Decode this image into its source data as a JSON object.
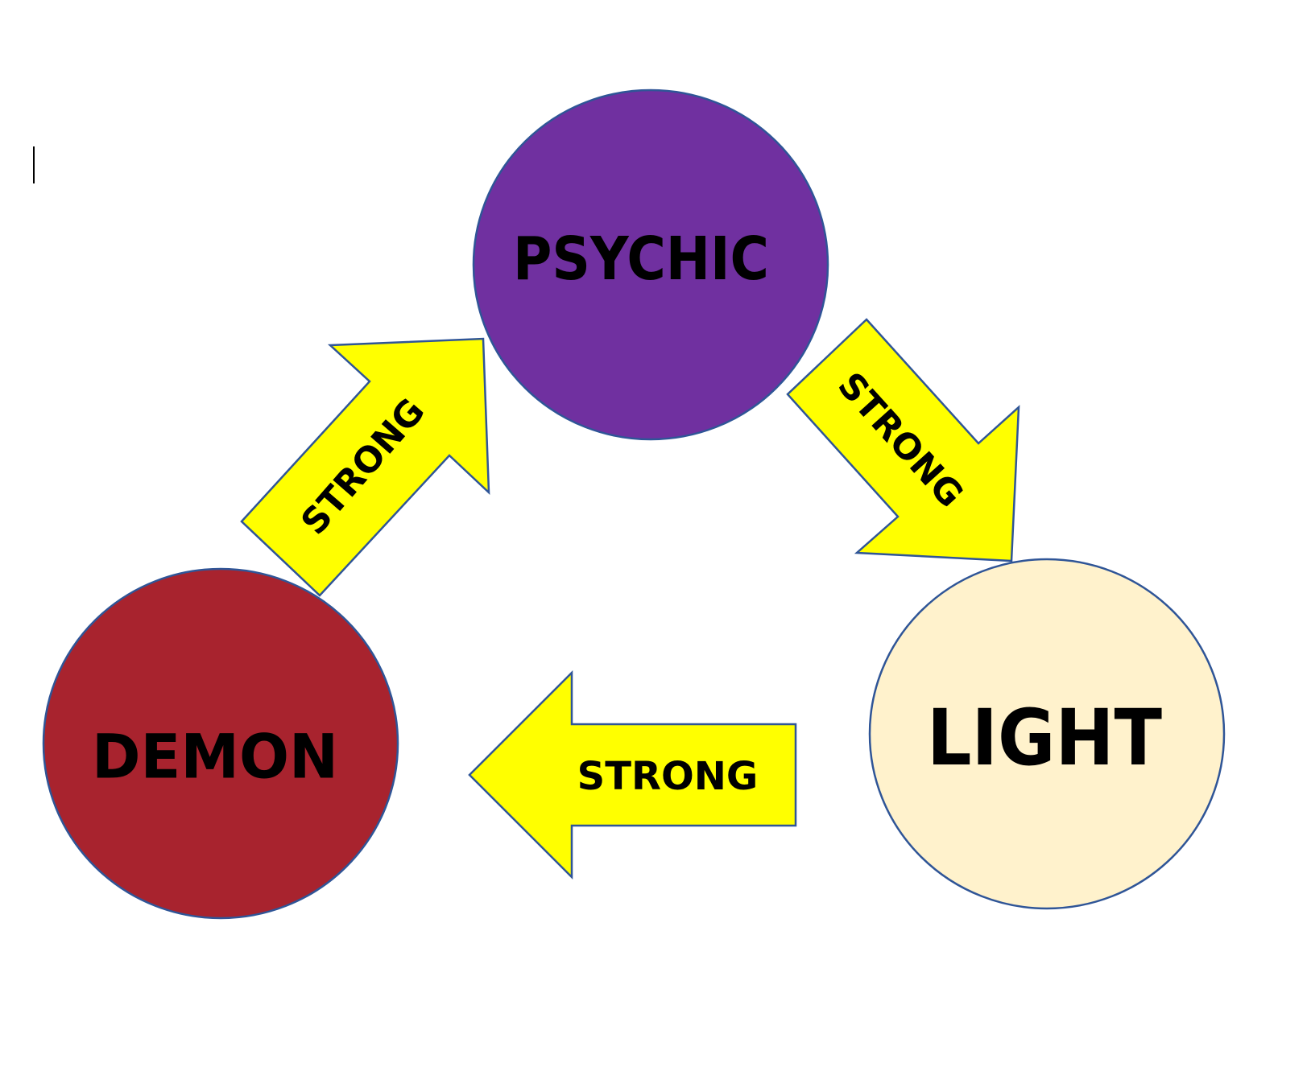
{
  "colors": {
    "psychic": "#7030A0",
    "demon": "#A8232E",
    "light": "#FFF2CC",
    "arrow_fill": "#FFFF00",
    "outline": "#2F5597",
    "text": "#000000"
  },
  "nodes": {
    "psychic": {
      "label": "PSYCHIC"
    },
    "demon": {
      "label": "DEMON"
    },
    "light": {
      "label": "LIGHT"
    }
  },
  "arrows": {
    "demon_to_psychic": {
      "label": "STRONG",
      "from": "DEMON",
      "to": "PSYCHIC"
    },
    "psychic_to_light": {
      "label": "STRONG",
      "from": "PSYCHIC",
      "to": "LIGHT"
    },
    "light_to_demon": {
      "label": "STRONG",
      "from": "LIGHT",
      "to": "DEMON"
    }
  }
}
